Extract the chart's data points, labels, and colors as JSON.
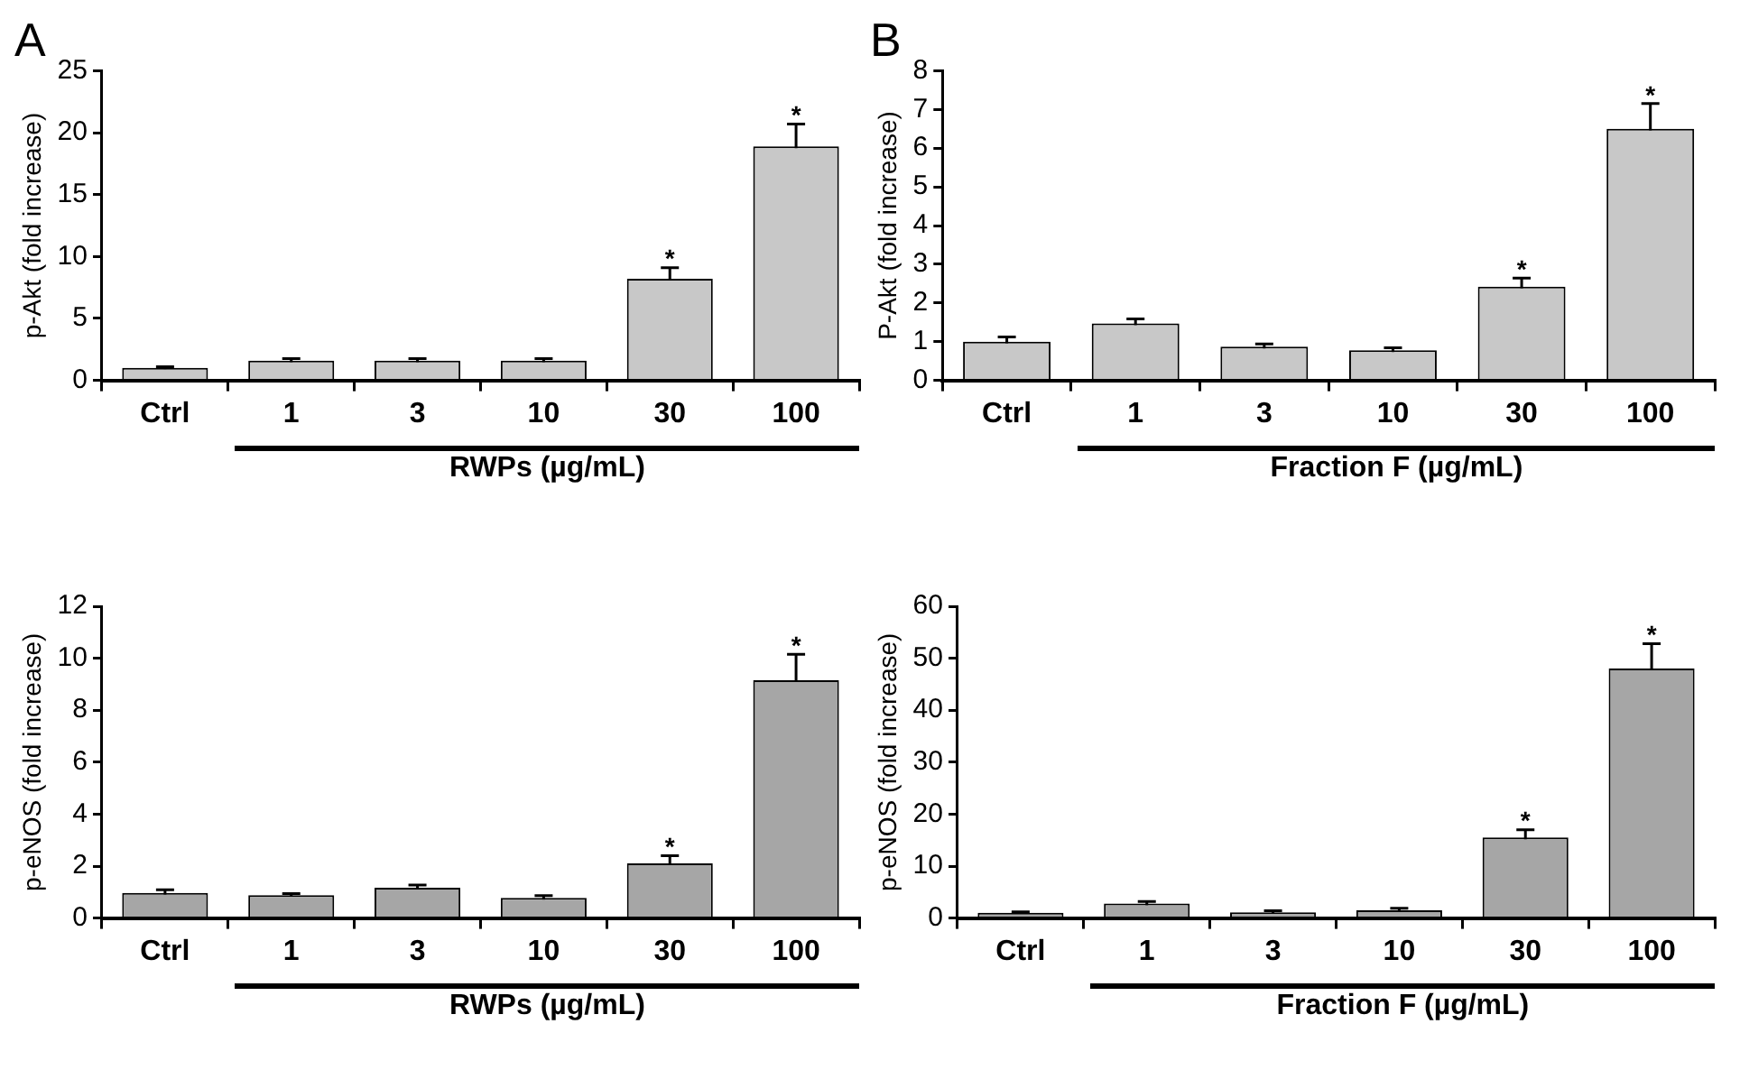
{
  "chart_data": [
    {
      "type": "bar",
      "title": "A",
      "categories": [
        "Ctrl",
        "1",
        "3",
        "10",
        "30",
        "100"
      ],
      "xlabel": "RWPs (µg/mL)",
      "ylabel": "p-Akt (fold increase)",
      "color": "#c8c8c8",
      "values": [
        1.0,
        1.6,
        1.6,
        1.6,
        8.2,
        18.9
      ],
      "errors": [
        0.1,
        0.15,
        0.15,
        0.15,
        0.9,
        1.8
      ],
      "ylim": [
        0,
        25
      ],
      "yticks": [
        0,
        5,
        10,
        15,
        20,
        25
      ],
      "grid": false,
      "legend": false,
      "annotations": [
        {
          "text": "*",
          "x": "30",
          "y": 9.1
        },
        {
          "text": "*",
          "x": "100",
          "y": 20.7
        }
      ]
    },
    {
      "type": "bar",
      "title": "B",
      "categories": [
        "Ctrl",
        "1",
        "3",
        "10",
        "30",
        "100"
      ],
      "xlabel": "Fraction F (µg/mL)",
      "ylabel": "P-Akt (fold increase)",
      "color": "#c8c8c8",
      "values": [
        1.0,
        1.47,
        0.87,
        0.78,
        2.42,
        6.5
      ],
      "errors": [
        0.12,
        0.12,
        0.07,
        0.06,
        0.22,
        0.65
      ],
      "ylim": [
        0,
        8
      ],
      "yticks": [
        0,
        1,
        2,
        3,
        4,
        5,
        6,
        7,
        8
      ],
      "grid": false,
      "legend": false,
      "annotations": [
        {
          "text": "*",
          "x": "30",
          "y": 2.64
        },
        {
          "text": "*",
          "x": "100",
          "y": 7.15
        }
      ]
    },
    {
      "type": "bar",
      "categories": [
        "Ctrl",
        "1",
        "3",
        "10",
        "30",
        "100"
      ],
      "xlabel": "RWPs (µg/mL)",
      "ylabel": "p-eNOS (fold increase)",
      "color": "#a6a6a6",
      "values": [
        0.97,
        0.88,
        1.17,
        0.78,
        2.1,
        9.15
      ],
      "errors": [
        0.12,
        0.06,
        0.1,
        0.08,
        0.3,
        1.0
      ],
      "ylim": [
        0,
        12
      ],
      "yticks": [
        0,
        2,
        4,
        6,
        8,
        10,
        12
      ],
      "grid": false,
      "legend": false,
      "annotations": [
        {
          "text": "*",
          "x": "30",
          "y": 2.4
        },
        {
          "text": "*",
          "x": "100",
          "y": 10.15
        }
      ]
    },
    {
      "type": "bar",
      "categories": [
        "Ctrl",
        "1",
        "3",
        "10",
        "30",
        "100"
      ],
      "xlabel": "Fraction F (µg/mL)",
      "ylabel": "p-eNOS (fold increase)",
      "color": "#a6a6a6",
      "values": [
        1.0,
        2.8,
        1.1,
        1.5,
        15.5,
        48
      ],
      "errors": [
        0.2,
        0.4,
        0.3,
        0.4,
        1.5,
        4.8
      ],
      "ylim": [
        0,
        60
      ],
      "yticks": [
        0,
        10,
        20,
        30,
        40,
        50,
        60
      ],
      "grid": false,
      "legend": false,
      "annotations": [
        {
          "text": "*",
          "x": "30",
          "y": 17
        },
        {
          "text": "*",
          "x": "100",
          "y": 52.8
        }
      ]
    }
  ]
}
